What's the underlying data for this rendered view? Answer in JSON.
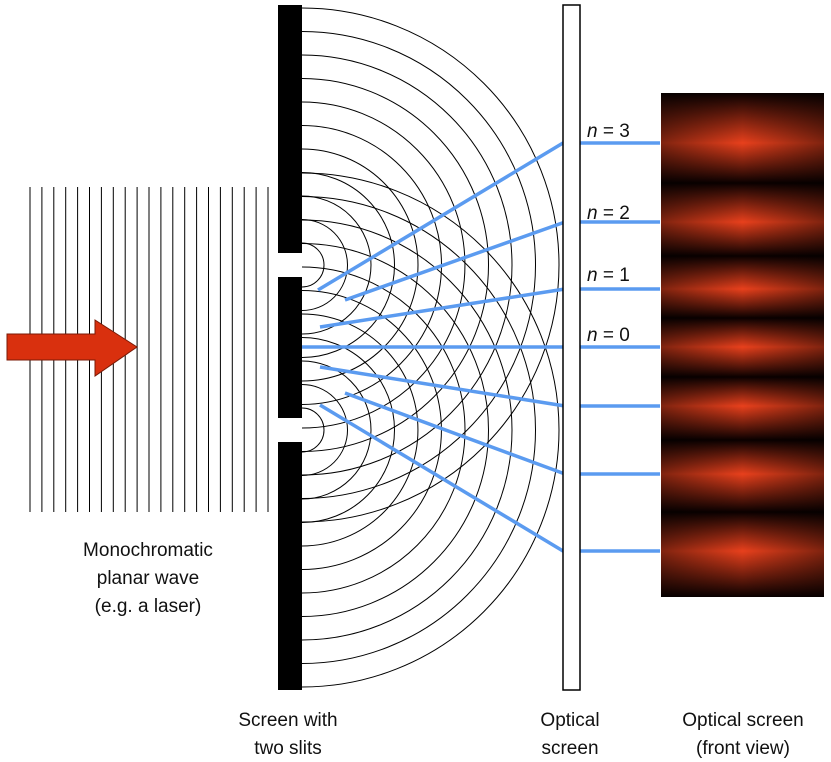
{
  "labels": {
    "source": [
      "Monochromatic",
      "planar wave",
      "(e.g. a laser)"
    ],
    "slits": [
      "Screen with",
      "two slits"
    ],
    "screen": [
      "Optical",
      "screen"
    ],
    "front": [
      "Optical screen",
      "(front view)"
    ]
  },
  "orders": [
    {
      "symbol": "n",
      "equals": " = 3"
    },
    {
      "symbol": "n",
      "equals": " = 2"
    },
    {
      "symbol": "n",
      "equals": " = 1"
    },
    {
      "symbol": "n",
      "equals": " = 0"
    }
  ]
}
